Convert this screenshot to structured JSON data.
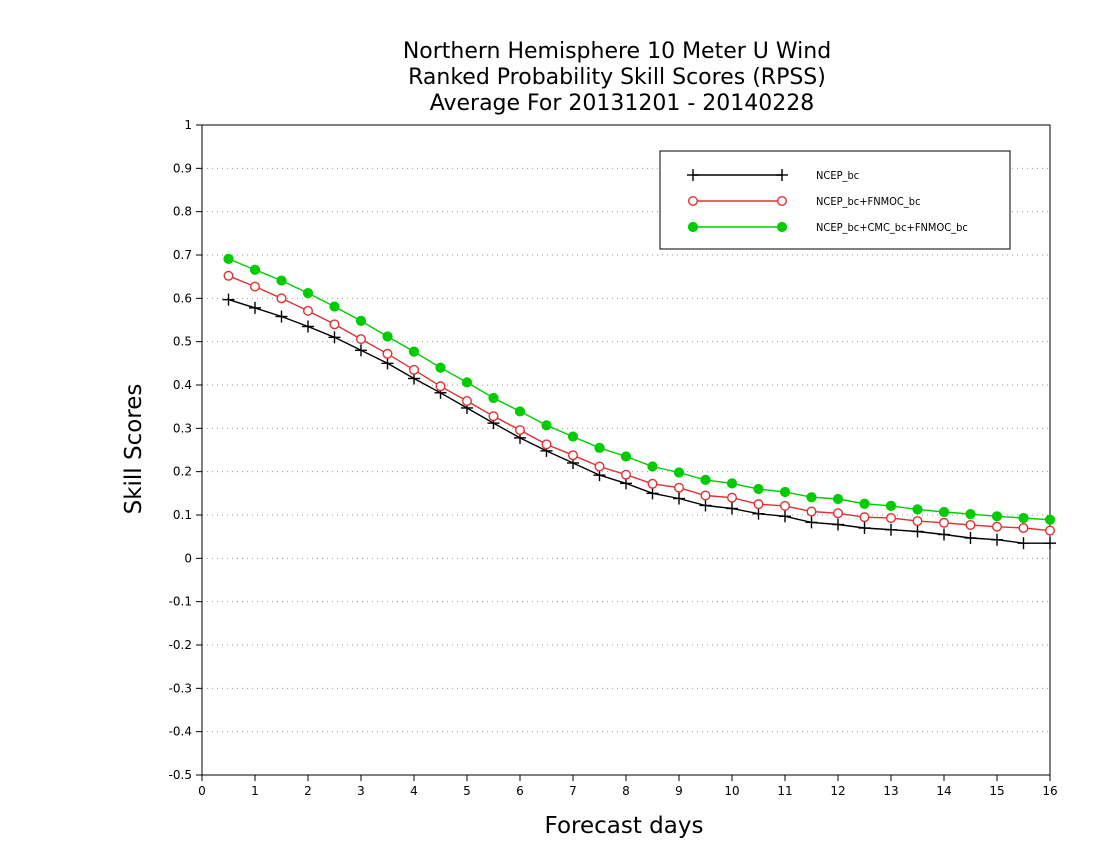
{
  "chart_data": {
    "type": "line",
    "title_lines": [
      "Northern Hemisphere 10 Meter U Wind",
      "Ranked Probability Skill Scores (RPSS)",
      "Average For 20131201 - 20140228"
    ],
    "xlabel": "Forecast days",
    "ylabel": "Skill Scores",
    "xlim": [
      0,
      16
    ],
    "ylim": [
      -0.5,
      1
    ],
    "xticks": [
      0,
      1,
      2,
      3,
      4,
      5,
      6,
      7,
      8,
      9,
      10,
      11,
      12,
      13,
      14,
      15,
      16
    ],
    "yticks": [
      -0.5,
      -0.4,
      -0.3,
      -0.2,
      -0.1,
      0,
      0.1,
      0.2,
      0.3,
      0.4,
      0.5,
      0.6,
      0.7,
      0.8,
      0.9,
      1
    ],
    "ytick_labels": [
      "-0.5",
      "-0.4",
      "-0.3",
      "-0.2",
      "-0.1",
      "0",
      "0.1",
      "0.2",
      "0.3",
      "0.4",
      "0.5",
      "0.6",
      "0.7",
      "0.8",
      "0.9",
      "1"
    ],
    "grid": "horizontal dotted",
    "legend_position": "top-right",
    "x": [
      0.5,
      1,
      1.5,
      2,
      2.5,
      3,
      3.5,
      4,
      4.5,
      5,
      5.5,
      6,
      6.5,
      7,
      7.5,
      8,
      8.5,
      9,
      9.5,
      10,
      10.5,
      11,
      11.5,
      12,
      12.5,
      13,
      13.5,
      14,
      14.5,
      15,
      15.5,
      16
    ],
    "series": [
      {
        "name": "NCEP_bc",
        "color": "#000000",
        "marker": "plus",
        "values": [
          0.597,
          0.578,
          0.558,
          0.535,
          0.51,
          0.48,
          0.45,
          0.415,
          0.382,
          0.347,
          0.312,
          0.278,
          0.248,
          0.22,
          0.192,
          0.173,
          0.15,
          0.138,
          0.122,
          0.115,
          0.103,
          0.097,
          0.083,
          0.078,
          0.07,
          0.066,
          0.062,
          0.055,
          0.047,
          0.043,
          0.035,
          0.035
        ]
      },
      {
        "name": "NCEP_bc+FNMOC_bc",
        "color": "#e03030",
        "marker": "open-circle",
        "values": [
          0.652,
          0.627,
          0.6,
          0.571,
          0.54,
          0.506,
          0.472,
          0.435,
          0.397,
          0.363,
          0.328,
          0.296,
          0.263,
          0.238,
          0.212,
          0.193,
          0.172,
          0.163,
          0.145,
          0.14,
          0.125,
          0.121,
          0.108,
          0.104,
          0.095,
          0.093,
          0.086,
          0.082,
          0.077,
          0.073,
          0.07,
          0.064
        ]
      },
      {
        "name": "NCEP_bc+CMC_bc+FNMOC_bc",
        "color": "#00cc00",
        "marker": "filled-circle",
        "values": [
          0.691,
          0.666,
          0.641,
          0.612,
          0.581,
          0.548,
          0.512,
          0.477,
          0.44,
          0.406,
          0.37,
          0.339,
          0.307,
          0.281,
          0.255,
          0.235,
          0.212,
          0.198,
          0.181,
          0.173,
          0.16,
          0.153,
          0.141,
          0.137,
          0.126,
          0.121,
          0.113,
          0.107,
          0.102,
          0.097,
          0.093,
          0.089
        ]
      }
    ]
  }
}
